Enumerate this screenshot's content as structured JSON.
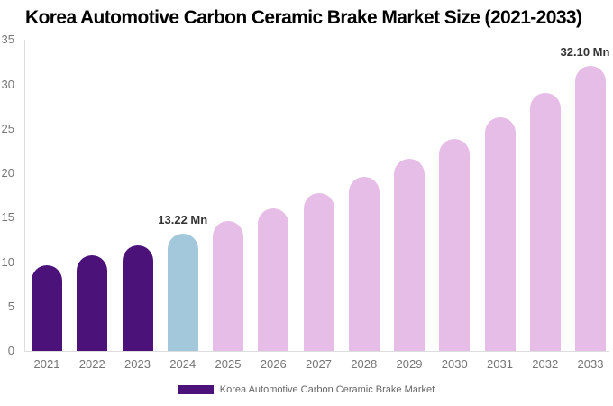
{
  "title": "Korea Automotive Carbon Ceramic Brake Market Size (2021-2033)",
  "legend": {
    "label": "Korea Automotive Carbon Ceramic Brake Market",
    "swatch_color": "#4B1379"
  },
  "chart_data": {
    "type": "bar",
    "title": "Korea Automotive Carbon Ceramic Brake Market Size (2021-2033)",
    "unit": "Mn",
    "categories": [
      "2021",
      "2022",
      "2023",
      "2024",
      "2025",
      "2026",
      "2027",
      "2028",
      "2029",
      "2030",
      "2031",
      "2032",
      "2033"
    ],
    "values": [
      9.7,
      10.78,
      11.92,
      13.22,
      14.59,
      16.1,
      17.77,
      19.61,
      21.64,
      23.88,
      26.36,
      29.09,
      32.1
    ],
    "bar_color_roles": [
      "historical",
      "historical",
      "historical",
      "base",
      "forecast",
      "forecast",
      "forecast",
      "forecast",
      "forecast",
      "forecast",
      "forecast",
      "forecast",
      "forecast"
    ],
    "colors": {
      "historical": "#4B1379",
      "base": "#A3C8DC",
      "forecast": "#E6BDE7"
    },
    "data_labels": [
      {
        "category": "2024",
        "text": "13.22 Mn"
      },
      {
        "category": "2033",
        "text": "32.10 Mn"
      }
    ],
    "xlabel": "",
    "ylabel": "",
    "ylim": [
      0,
      35
    ],
    "yticks": [
      0,
      5,
      10,
      15,
      20,
      25,
      30,
      35
    ],
    "grid": false,
    "legend_position": "bottom",
    "axis_color": "#dddddd",
    "tick_label_color": "#757575",
    "data_label_color": "#333333"
  }
}
